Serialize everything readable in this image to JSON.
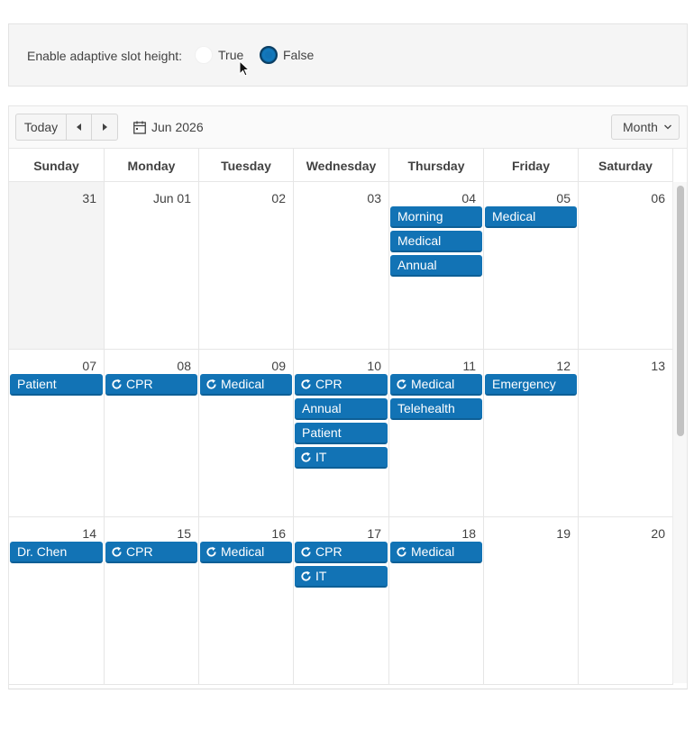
{
  "config": {
    "label": "Enable adaptive slot height:",
    "option_true": "True",
    "option_false": "False",
    "selected": "False"
  },
  "toolbar": {
    "today_label": "Today",
    "prev_icon": "caret-left-icon",
    "next_icon": "caret-right-icon",
    "date_label": "Jun 2026",
    "view_label": "Month"
  },
  "day_headers": [
    "Sunday",
    "Monday",
    "Tuesday",
    "Wednesday",
    "Thursday",
    "Friday",
    "Saturday"
  ],
  "weeks": [
    {
      "days": [
        "31",
        "Jun 01",
        "02",
        "03",
        "04",
        "05",
        "06"
      ],
      "events": [
        {
          "day": 4,
          "slot": 0,
          "title": "Morning",
          "recurring": false
        },
        {
          "day": 4,
          "slot": 1,
          "title": "Medical",
          "recurring": false
        },
        {
          "day": 4,
          "slot": 2,
          "title": "Annual",
          "recurring": false
        },
        {
          "day": 5,
          "slot": 0,
          "title": "Medical",
          "recurring": false
        }
      ]
    },
    {
      "days": [
        "07",
        "08",
        "09",
        "10",
        "11",
        "12",
        "13"
      ],
      "events": [
        {
          "day": 0,
          "slot": 0,
          "title": "Patient",
          "recurring": false
        },
        {
          "day": 1,
          "slot": 0,
          "title": "CPR",
          "recurring": true
        },
        {
          "day": 2,
          "slot": 0,
          "title": "Medical",
          "recurring": true
        },
        {
          "day": 3,
          "slot": 0,
          "title": "CPR",
          "recurring": true
        },
        {
          "day": 3,
          "slot": 1,
          "title": "Annual",
          "recurring": false
        },
        {
          "day": 3,
          "slot": 2,
          "title": "Patient",
          "recurring": false
        },
        {
          "day": 3,
          "slot": 3,
          "title": "IT",
          "recurring": true
        },
        {
          "day": 4,
          "slot": 0,
          "title": "Medical",
          "recurring": true
        },
        {
          "day": 4,
          "slot": 1,
          "title": "Telehealth",
          "recurring": false
        },
        {
          "day": 5,
          "slot": 0,
          "title": "Emergency",
          "recurring": false
        }
      ]
    },
    {
      "days": [
        "14",
        "15",
        "16",
        "17",
        "18",
        "19",
        "20"
      ],
      "events": [
        {
          "day": 0,
          "slot": 0,
          "title": "Dr. Chen",
          "recurring": false
        },
        {
          "day": 1,
          "slot": 0,
          "title": "CPR",
          "recurring": true
        },
        {
          "day": 2,
          "slot": 0,
          "title": "Medical",
          "recurring": true
        },
        {
          "day": 3,
          "slot": 0,
          "title": "CPR",
          "recurring": true
        },
        {
          "day": 3,
          "slot": 1,
          "title": "IT",
          "recurring": true
        },
        {
          "day": 4,
          "slot": 0,
          "title": "Medical",
          "recurring": true
        }
      ]
    }
  ],
  "colors": {
    "event": "#1273b5",
    "other_month": "#f4f4f4",
    "panel": "#f5f5f5"
  }
}
